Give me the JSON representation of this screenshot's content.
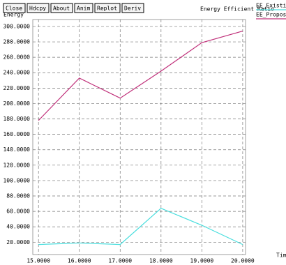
{
  "toolbar": [
    "Close",
    "Hdcpy",
    "About",
    "Anim",
    "Replot",
    "Deriv"
  ],
  "chart_data": {
    "type": "line",
    "title": "Energy Efficient Ratio",
    "y_label": "Energy",
    "x_label": "Time",
    "x": [
      15,
      16,
      17,
      18,
      19,
      20
    ],
    "series": [
      {
        "name": "EE_Existing",
        "color": "#48dede",
        "values": [
          17,
          19,
          17,
          64,
          42,
          17
        ]
      },
      {
        "name": "EE_Proposed",
        "color": "#c0307a",
        "values": [
          178,
          233,
          207,
          242,
          279,
          294
        ]
      }
    ],
    "xlim": [
      14.86,
      20.07
    ],
    "xticks": [
      {
        "value": 15,
        "label": "15.0000"
      },
      {
        "value": 16,
        "label": "16.0000"
      },
      {
        "value": 17,
        "label": "17.0000"
      },
      {
        "value": 18,
        "label": "18.0000"
      },
      {
        "value": 19,
        "label": "19.0000"
      },
      {
        "value": 20,
        "label": "20.0000"
      }
    ],
    "ylim": [
      4,
      309
    ],
    "yticks": [
      {
        "value": 20,
        "label": "20.0000"
      },
      {
        "value": 40,
        "label": "40.0000"
      },
      {
        "value": 60,
        "label": "60.0000"
      },
      {
        "value": 80,
        "label": "80.0000"
      },
      {
        "value": 100,
        "label": "100.0000"
      },
      {
        "value": 120,
        "label": "120.0000"
      },
      {
        "value": 140,
        "label": "140.0000"
      },
      {
        "value": 160,
        "label": "160.0000"
      },
      {
        "value": 180,
        "label": "180.0000"
      },
      {
        "value": 200,
        "label": "200.0000"
      },
      {
        "value": 220,
        "label": "220.0000"
      },
      {
        "value": 240,
        "label": "240.0000"
      },
      {
        "value": 260,
        "label": "260.0000"
      },
      {
        "value": 280,
        "label": "280.0000"
      },
      {
        "value": 300,
        "label": "300.0000"
      }
    ],
    "grid": true
  }
}
